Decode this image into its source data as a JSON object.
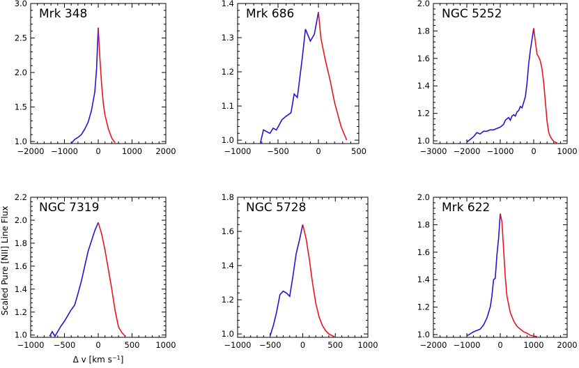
{
  "figure": {
    "ylabel": "Scaled Pure [NII] Line Flux",
    "xlabel": "Δ v [km s",
    "xlabel_sup": "−1",
    "xlabel_end": "]"
  },
  "colors": {
    "blue": "#2a10d6",
    "red": "#e8141e"
  },
  "chart_data": [
    {
      "type": "line",
      "title": "Mrk 348",
      "xlim": [
        -2000,
        2000
      ],
      "ylim": [
        0.97,
        3.0
      ],
      "xticks": [
        -2000,
        -1000,
        0,
        1000,
        2000
      ],
      "xtick_labels": [
        "−2000",
        "−1000",
        "0",
        "1000",
        "2000"
      ],
      "yticks": [
        1.0,
        1.5,
        2.0,
        2.5,
        3.0
      ],
      "ytick_labels": [
        "1.0",
        "1.5",
        "2.0",
        "2.5",
        "3.0"
      ],
      "series": [
        {
          "color": "blue",
          "x": [
            -800,
            -700,
            -600,
            -500,
            -400,
            -300,
            -200,
            -100,
            -50,
            0
          ],
          "y": [
            0.97,
            1.03,
            1.06,
            1.1,
            1.18,
            1.28,
            1.45,
            1.72,
            2.05,
            2.65
          ]
        },
        {
          "color": "red",
          "x": [
            0,
            50,
            100,
            150,
            200,
            300,
            400,
            500
          ],
          "y": [
            2.65,
            2.2,
            1.82,
            1.55,
            1.38,
            1.18,
            1.05,
            0.98
          ]
        }
      ]
    },
    {
      "type": "line",
      "title": "Mrk 686",
      "xlim": [
        -1000,
        500
      ],
      "ylim": [
        0.99,
        1.4
      ],
      "xticks": [
        -1000,
        -500,
        0,
        500
      ],
      "xtick_labels": [
        "−1000",
        "−500",
        "0",
        "500"
      ],
      "yticks": [
        1.0,
        1.1,
        1.2,
        1.3,
        1.4
      ],
      "ytick_labels": [
        "1.0",
        "1.1",
        "1.2",
        "1.3",
        "1.4"
      ],
      "series": [
        {
          "color": "blue",
          "x": [
            -720,
            -680,
            -600,
            -560,
            -520,
            -450,
            -400,
            -340,
            -300,
            -260,
            -200,
            -160,
            -100,
            -50,
            0
          ],
          "y": [
            0.99,
            1.03,
            1.02,
            1.035,
            1.03,
            1.06,
            1.07,
            1.08,
            1.135,
            1.125,
            1.24,
            1.325,
            1.29,
            1.31,
            1.375
          ]
        },
        {
          "color": "red",
          "x": [
            0,
            30,
            80,
            150,
            200,
            280,
            350
          ],
          "y": [
            1.375,
            1.3,
            1.24,
            1.17,
            1.11,
            1.04,
            1.0
          ]
        }
      ]
    },
    {
      "type": "line",
      "title": "NGC 5252",
      "xlim": [
        -3000,
        1000
      ],
      "ylim": [
        0.98,
        2.0
      ],
      "xticks": [
        -3000,
        -2000,
        -1000,
        0,
        1000
      ],
      "xtick_labels": [
        "−3000",
        "−2000",
        "−1000",
        "0",
        "1000"
      ],
      "yticks": [
        1.0,
        1.2,
        1.4,
        1.6,
        1.8,
        2.0
      ],
      "ytick_labels": [
        "1.0",
        "1.2",
        "1.4",
        "1.6",
        "1.8",
        "2.0"
      ],
      "series": [
        {
          "color": "blue",
          "x": [
            -2000,
            -1900,
            -1800,
            -1700,
            -1600,
            -1500,
            -1400,
            -1300,
            -1200,
            -1100,
            -1000,
            -900,
            -850,
            -800,
            -750,
            -700,
            -650,
            -600,
            -550,
            -500,
            -450,
            -400,
            -350,
            -300,
            -250,
            -200,
            -150,
            -100,
            -50,
            0
          ],
          "y": [
            0.99,
            1.01,
            1.03,
            1.06,
            1.05,
            1.07,
            1.07,
            1.08,
            1.08,
            1.09,
            1.1,
            1.12,
            1.15,
            1.16,
            1.17,
            1.15,
            1.18,
            1.19,
            1.18,
            1.21,
            1.22,
            1.25,
            1.24,
            1.28,
            1.32,
            1.42,
            1.56,
            1.66,
            1.74,
            1.82
          ]
        },
        {
          "color": "red",
          "x": [
            0,
            50,
            100,
            150,
            200,
            250,
            300,
            350,
            400,
            450,
            500,
            550,
            600,
            700
          ],
          "y": [
            1.82,
            1.72,
            1.63,
            1.61,
            1.58,
            1.52,
            1.42,
            1.28,
            1.14,
            1.06,
            1.03,
            1.01,
            0.995,
            0.985
          ]
        }
      ]
    },
    {
      "type": "line",
      "title": "NGC 7319",
      "xlim": [
        -1000,
        1000
      ],
      "ylim": [
        0.98,
        2.2
      ],
      "xticks": [
        -1000,
        -500,
        0,
        500,
        1000
      ],
      "xtick_labels": [
        "−1000",
        "−500",
        "0",
        "500",
        "1000"
      ],
      "yticks": [
        1.0,
        1.2,
        1.4,
        1.6,
        1.8,
        2.0,
        2.2
      ],
      "ytick_labels": [
        "1.0",
        "1.2",
        "1.4",
        "1.6",
        "1.8",
        "2.0",
        "2.2"
      ],
      "series": [
        {
          "color": "blue",
          "x": [
            -720,
            -680,
            -640,
            -600,
            -550,
            -500,
            -450,
            -400,
            -350,
            -300,
            -250,
            -200,
            -150,
            -100,
            -50,
            0
          ],
          "y": [
            0.99,
            1.03,
            0.99,
            1.03,
            1.08,
            1.12,
            1.17,
            1.22,
            1.26,
            1.36,
            1.47,
            1.6,
            1.73,
            1.82,
            1.91,
            1.98
          ]
        },
        {
          "color": "red",
          "x": [
            0,
            50,
            100,
            150,
            200,
            250,
            300,
            350,
            400
          ],
          "y": [
            1.98,
            1.88,
            1.74,
            1.57,
            1.4,
            1.21,
            1.07,
            1.02,
            0.99
          ]
        }
      ]
    },
    {
      "type": "line",
      "title": "NGC 5728",
      "xlim": [
        -1000,
        1000
      ],
      "ylim": [
        0.98,
        1.8
      ],
      "xticks": [
        -1000,
        -500,
        0,
        500,
        1000
      ],
      "xtick_labels": [
        "−1000",
        "−500",
        "0",
        "500",
        "1000"
      ],
      "yticks": [
        1.0,
        1.2,
        1.4,
        1.6,
        1.8
      ],
      "ytick_labels": [
        "1.0",
        "1.2",
        "1.4",
        "1.6",
        "1.8"
      ],
      "series": [
        {
          "color": "blue",
          "x": [
            -500,
            -450,
            -400,
            -350,
            -300,
            -250,
            -200,
            -150,
            -100,
            -50,
            0
          ],
          "y": [
            0.99,
            1.05,
            1.13,
            1.23,
            1.25,
            1.24,
            1.22,
            1.34,
            1.47,
            1.55,
            1.64
          ]
        },
        {
          "color": "red",
          "x": [
            0,
            50,
            100,
            150,
            200,
            250,
            300,
            350,
            400,
            450,
            500
          ],
          "y": [
            1.64,
            1.56,
            1.44,
            1.3,
            1.18,
            1.1,
            1.05,
            1.02,
            1.0,
            0.99,
            0.98
          ]
        }
      ]
    },
    {
      "type": "line",
      "title": "Mrk 622",
      "xlim": [
        -2000,
        2000
      ],
      "ylim": [
        0.98,
        2.0
      ],
      "xticks": [
        -2000,
        -1000,
        0,
        1000,
        2000
      ],
      "xtick_labels": [
        "−2000",
        "−1000",
        "0",
        "1000",
        "2000"
      ],
      "yticks": [
        1.0,
        1.2,
        1.4,
        1.6,
        1.8,
        2.0
      ],
      "ytick_labels": [
        "1.0",
        "1.2",
        "1.4",
        "1.6",
        "1.8",
        "2.0"
      ],
      "series": [
        {
          "color": "blue",
          "x": [
            -1000,
            -800,
            -600,
            -500,
            -400,
            -300,
            -250,
            -200,
            -150,
            -100,
            -50,
            0
          ],
          "y": [
            0.99,
            1.02,
            1.04,
            1.07,
            1.12,
            1.2,
            1.28,
            1.4,
            1.41,
            1.58,
            1.7,
            1.88
          ]
        },
        {
          "color": "red",
          "x": [
            0,
            50,
            100,
            150,
            200,
            300,
            400,
            500,
            600,
            700,
            800,
            900,
            1000,
            1100
          ],
          "y": [
            1.88,
            1.82,
            1.62,
            1.42,
            1.28,
            1.16,
            1.1,
            1.06,
            1.04,
            1.02,
            1.01,
            0.995,
            0.99,
            0.985
          ]
        }
      ]
    }
  ]
}
